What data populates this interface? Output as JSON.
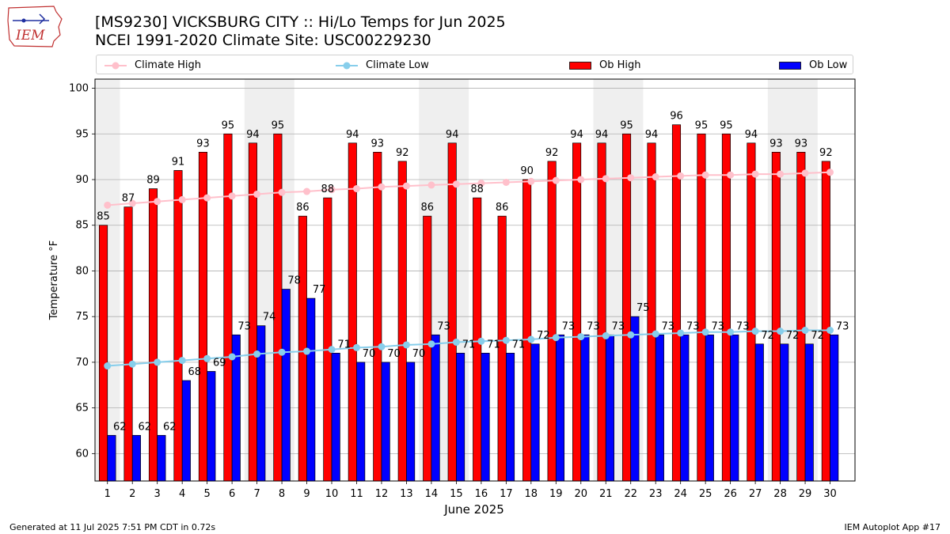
{
  "header": {
    "logo_text": "IEM",
    "title_line1": "[MS9230] VICKSBURG CITY :: Hi/Lo Temps for Jun 2025",
    "title_line2": "NCEI 1991-2020 Climate Site: USC00229230"
  },
  "legend": [
    {
      "label": "Climate High",
      "kind": "line",
      "color": "#ffc0cb"
    },
    {
      "label": "Climate Low",
      "kind": "line",
      "color": "#87ceeb"
    },
    {
      "label": "Ob High",
      "kind": "bar",
      "color": "#ff0000"
    },
    {
      "label": "Ob Low",
      "kind": "bar",
      "color": "#0000ff"
    }
  ],
  "footer": {
    "generated": "Generated at 11 Jul 2025 7:51 PM CDT in 0.72s",
    "app": "IEM Autoplot App #17"
  },
  "chart_data": {
    "type": "bar",
    "xlabel": "June 2025",
    "ylabel": "Temperature °F",
    "ylim": [
      57,
      101
    ],
    "yticks": [
      60,
      65,
      70,
      75,
      80,
      85,
      90,
      95,
      100
    ],
    "grid": true,
    "legend_position": "top",
    "weekend_shaded_days": [
      1,
      7,
      8,
      14,
      15,
      21,
      22,
      28,
      29
    ],
    "categories": [
      "1",
      "2",
      "3",
      "4",
      "5",
      "6",
      "7",
      "8",
      "9",
      "10",
      "11",
      "12",
      "13",
      "14",
      "15",
      "16",
      "17",
      "18",
      "19",
      "20",
      "21",
      "22",
      "23",
      "24",
      "25",
      "26",
      "27",
      "28",
      "29",
      "30"
    ],
    "series": [
      {
        "name": "Ob High",
        "type": "bar",
        "color": "#ff0000",
        "values": [
          85,
          87,
          89,
          91,
          93,
          95,
          94,
          95,
          86,
          88,
          94,
          93,
          92,
          86,
          94,
          88,
          86,
          90,
          92,
          94,
          94,
          95,
          94,
          96,
          95,
          95,
          94,
          93,
          93,
          92
        ]
      },
      {
        "name": "Ob Low",
        "type": "bar",
        "color": "#0000ff",
        "values": [
          62,
          62,
          62,
          68,
          69,
          73,
          74,
          78,
          77,
          71,
          70,
          70,
          70,
          73,
          71,
          71,
          71,
          72,
          73,
          73,
          73,
          75,
          73,
          73,
          73,
          73,
          72,
          72,
          72,
          73
        ]
      },
      {
        "name": "Climate High",
        "type": "line",
        "color": "#ffc0cb",
        "values": [
          87.2,
          87.4,
          87.6,
          87.8,
          88.0,
          88.2,
          88.4,
          88.6,
          88.7,
          88.9,
          89.0,
          89.2,
          89.3,
          89.4,
          89.5,
          89.6,
          89.7,
          89.8,
          89.9,
          90.0,
          90.1,
          90.2,
          90.3,
          90.4,
          90.5,
          90.5,
          90.6,
          90.6,
          90.7,
          90.8
        ]
      },
      {
        "name": "Climate Low",
        "type": "line",
        "color": "#87ceeb",
        "values": [
          69.6,
          69.8,
          70.0,
          70.2,
          70.4,
          70.6,
          70.9,
          71.1,
          71.2,
          71.4,
          71.6,
          71.7,
          71.9,
          72.0,
          72.2,
          72.3,
          72.4,
          72.5,
          72.7,
          72.8,
          72.9,
          73.0,
          73.1,
          73.2,
          73.3,
          73.3,
          73.4,
          73.4,
          73.5,
          73.5
        ]
      }
    ]
  }
}
